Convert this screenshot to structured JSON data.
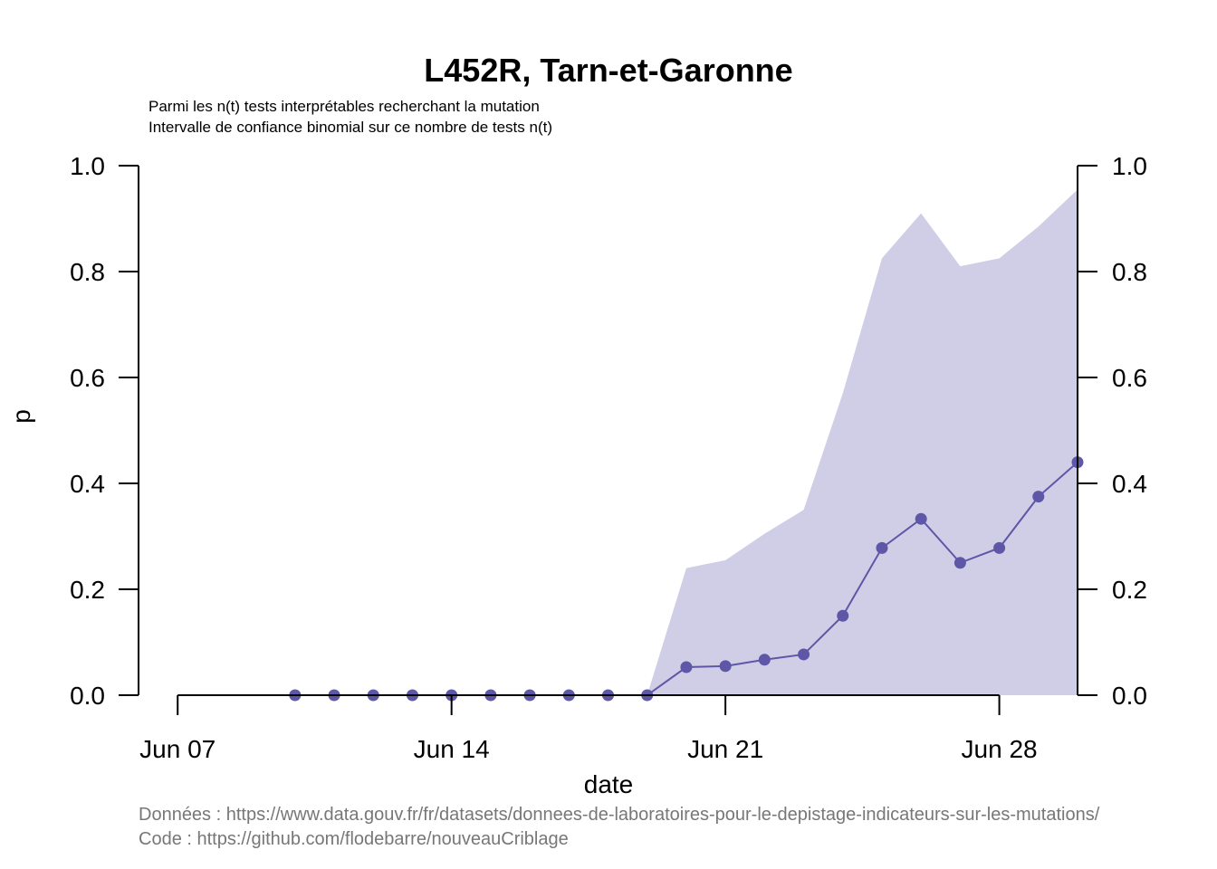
{
  "chart_data": {
    "type": "line",
    "title": "L452R, Tarn-et-Garonne",
    "subtitle_lines": [
      "Parmi les n(t) tests interprétables recherchant la mutation",
      "Intervalle de confiance binomial sur ce nombre de tests n(t)"
    ],
    "xlabel": "date",
    "ylabel": "p",
    "xlim": [
      "2021-06-06",
      "2021-06-30"
    ],
    "ylim": [
      0,
      1
    ],
    "x_ticks": [
      {
        "date": "2021-06-07",
        "label": "Jun 07"
      },
      {
        "date": "2021-06-14",
        "label": "Jun 14"
      },
      {
        "date": "2021-06-21",
        "label": "Jun 21"
      },
      {
        "date": "2021-06-28",
        "label": "Jun 28"
      }
    ],
    "y_ticks": [
      {
        "value": 0.0,
        "label": "0.0"
      },
      {
        "value": 0.2,
        "label": "0.2"
      },
      {
        "value": 0.4,
        "label": "0.4"
      },
      {
        "value": 0.6,
        "label": "0.6"
      },
      {
        "value": 0.8,
        "label": "0.8"
      },
      {
        "value": 1.0,
        "label": "1.0"
      }
    ],
    "right_axis": true,
    "grid": false,
    "series": [
      {
        "x": [
          "2021-06-10",
          "2021-06-11",
          "2021-06-12",
          "2021-06-13",
          "2021-06-14",
          "2021-06-15",
          "2021-06-16",
          "2021-06-17",
          "2021-06-18",
          "2021-06-19",
          "2021-06-20",
          "2021-06-21",
          "2021-06-22",
          "2021-06-23",
          "2021-06-24",
          "2021-06-25",
          "2021-06-26",
          "2021-06-27",
          "2021-06-28",
          "2021-06-29",
          "2021-06-30"
        ],
        "y": [
          0,
          0,
          0,
          0,
          0,
          0,
          0,
          0,
          0,
          0,
          0.053,
          0.055,
          0.067,
          0.077,
          0.15,
          0.278,
          0.333,
          0.25,
          0.278,
          0.375,
          0.44
        ],
        "ci_lower": [
          0,
          0,
          0,
          0,
          0,
          0,
          0,
          0,
          0,
          0,
          0,
          0,
          0,
          0,
          0,
          0,
          0,
          0,
          0,
          0,
          0
        ],
        "ci_upper": [
          0,
          0,
          0,
          0,
          0,
          0,
          0,
          0,
          0,
          0,
          0.24,
          0.255,
          0.305,
          0.35,
          0.57,
          0.825,
          0.91,
          0.81,
          0.825,
          0.885,
          0.955
        ],
        "line_color": "#5e56a6",
        "band_color": "#d0cee6"
      }
    ],
    "source_lines": [
      "Données : https://www.data.gouv.fr/fr/datasets/donnees-de-laboratoires-pour-le-depistage-indicateurs-sur-les-mutations/",
      "Code : https://github.com/flodebarre/nouveauCriblage"
    ]
  }
}
